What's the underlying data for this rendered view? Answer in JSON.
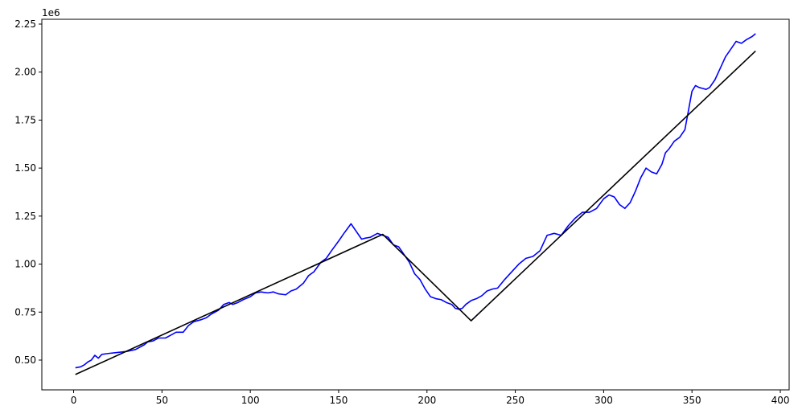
{
  "chart_data": {
    "type": "line",
    "title": "",
    "xlabel": "",
    "ylabel": "",
    "y_offset_label": "1e6",
    "xlim": [
      -18,
      405
    ],
    "ylim": [
      0.345,
      2.275
    ],
    "x_ticks": [
      0,
      50,
      100,
      150,
      200,
      250,
      300,
      350,
      400
    ],
    "y_ticks": [
      0.5,
      0.75,
      1.0,
      1.25,
      1.5,
      1.75,
      2.0,
      2.25
    ],
    "x_tick_labels": [
      "0",
      "50",
      "100",
      "150",
      "200",
      "250",
      "300",
      "350",
      "400"
    ],
    "y_tick_labels": [
      "0.50",
      "0.75",
      "1.00",
      "1.25",
      "1.50",
      "1.75",
      "2.00",
      "2.25"
    ],
    "grid": false,
    "legend": "none",
    "series": [
      {
        "color": "#0000ff",
        "x": [
          1,
          4,
          6,
          8,
          10,
          12,
          14,
          16,
          20,
          25,
          30,
          35,
          38,
          40,
          42,
          45,
          48,
          52,
          55,
          58,
          62,
          65,
          68,
          72,
          75,
          78,
          82,
          85,
          88,
          90,
          93,
          96,
          100,
          103,
          106,
          110,
          113,
          116,
          120,
          123,
          126,
          130,
          133,
          136,
          140,
          143,
          146,
          150,
          153,
          155,
          157,
          160,
          163,
          165,
          168,
          172,
          175,
          178,
          181,
          184,
          187,
          190,
          193,
          196,
          199,
          202,
          205,
          208,
          211,
          214,
          216,
          218,
          220,
          222,
          225,
          228,
          231,
          234,
          237,
          240,
          244,
          248,
          252,
          256,
          260,
          264,
          268,
          272,
          276,
          280,
          284,
          288,
          292,
          296,
          300,
          303,
          306,
          309,
          312,
          315,
          318,
          321,
          324,
          327,
          330,
          333,
          335,
          337,
          340,
          343,
          346,
          348,
          350,
          352,
          354,
          356,
          358,
          360,
          363,
          366,
          369,
          372,
          375,
          378,
          381,
          384,
          386
        ],
        "y": [
          0.46,
          0.465,
          0.475,
          0.49,
          0.5,
          0.525,
          0.51,
          0.53,
          0.535,
          0.54,
          0.545,
          0.555,
          0.57,
          0.58,
          0.595,
          0.6,
          0.615,
          0.615,
          0.63,
          0.645,
          0.645,
          0.68,
          0.7,
          0.71,
          0.72,
          0.74,
          0.76,
          0.79,
          0.8,
          0.79,
          0.8,
          0.815,
          0.83,
          0.85,
          0.855,
          0.85,
          0.855,
          0.845,
          0.84,
          0.86,
          0.87,
          0.9,
          0.94,
          0.96,
          1.01,
          1.03,
          1.07,
          1.12,
          1.16,
          1.185,
          1.21,
          1.17,
          1.13,
          1.135,
          1.14,
          1.16,
          1.15,
          1.14,
          1.1,
          1.09,
          1.05,
          1.01,
          0.95,
          0.92,
          0.87,
          0.83,
          0.82,
          0.815,
          0.8,
          0.79,
          0.77,
          0.765,
          0.77,
          0.79,
          0.81,
          0.82,
          0.835,
          0.86,
          0.87,
          0.875,
          0.92,
          0.96,
          1.0,
          1.03,
          1.04,
          1.07,
          1.15,
          1.16,
          1.15,
          1.2,
          1.24,
          1.27,
          1.27,
          1.29,
          1.34,
          1.36,
          1.35,
          1.31,
          1.29,
          1.32,
          1.38,
          1.45,
          1.5,
          1.48,
          1.47,
          1.52,
          1.58,
          1.6,
          1.64,
          1.66,
          1.7,
          1.8,
          1.9,
          1.93,
          1.92,
          1.915,
          1.91,
          1.92,
          1.96,
          2.02,
          2.08,
          2.12,
          2.16,
          2.15,
          2.17,
          2.185,
          2.2
        ]
      },
      {
        "color": "#000000",
        "x": [
          1,
          175,
          225,
          386
        ],
        "y": [
          0.425,
          1.155,
          0.705,
          2.11
        ]
      }
    ]
  }
}
